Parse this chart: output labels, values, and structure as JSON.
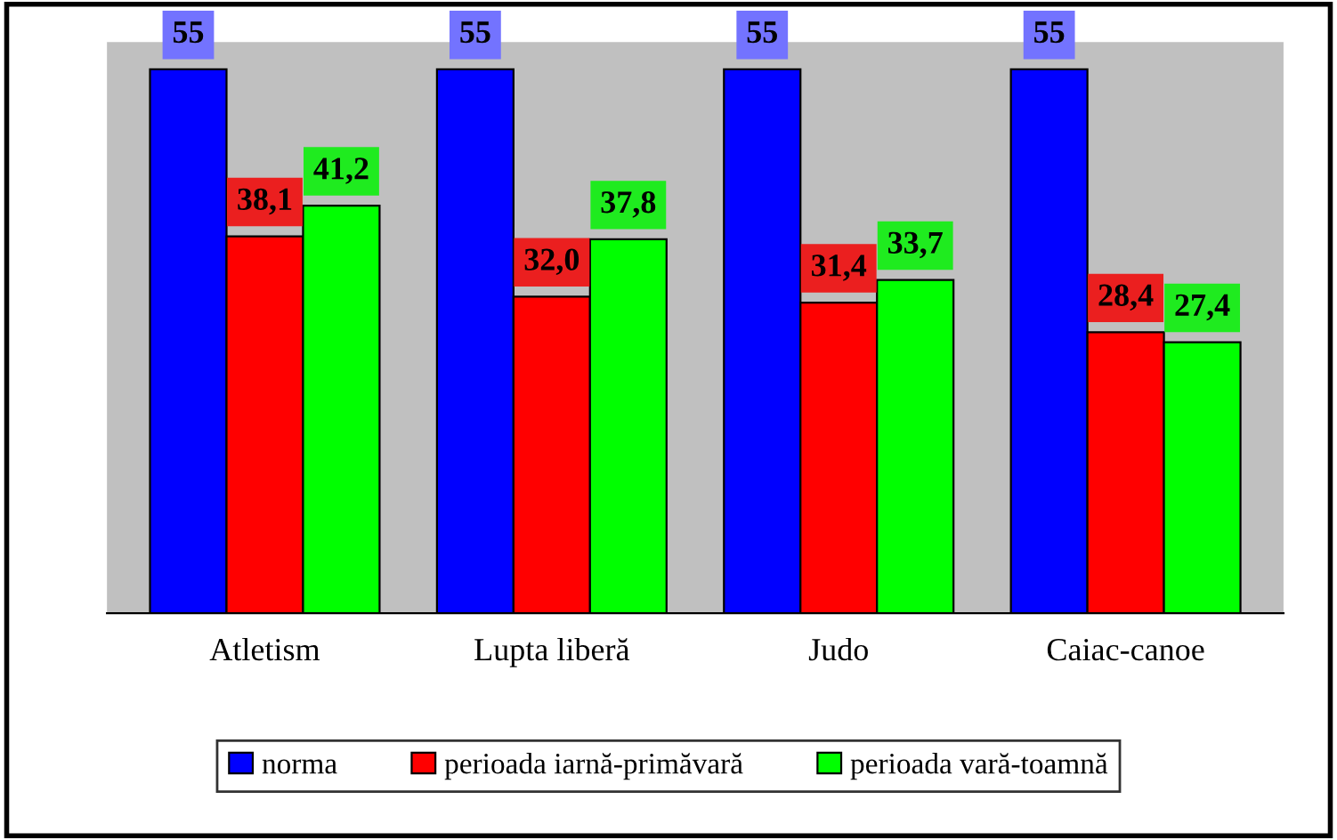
{
  "chart_data": {
    "type": "bar",
    "categories": [
      "Atletism",
      "Lupta liberă",
      "Judo",
      "Caiac-canoe"
    ],
    "series": [
      {
        "name": "norma",
        "color": "#0000ff",
        "values": [
          55,
          55,
          55,
          55
        ],
        "value_labels": [
          "55",
          "55",
          "55",
          "55"
        ]
      },
      {
        "name": "perioada iarnă-primăvară",
        "color": "#ff0000",
        "values": [
          38.1,
          32.0,
          31.4,
          28.4
        ],
        "value_labels": [
          "38,1",
          "32,0",
          "31,4",
          "28,4"
        ]
      },
      {
        "name": "perioada vară-toamnă",
        "color": "#00ff00",
        "values": [
          41.2,
          37.8,
          33.7,
          27.4
        ],
        "value_labels": [
          "41,2",
          "37,8",
          "33,7",
          "27,4"
        ]
      }
    ],
    "legend": "bottom",
    "grid": false
  }
}
